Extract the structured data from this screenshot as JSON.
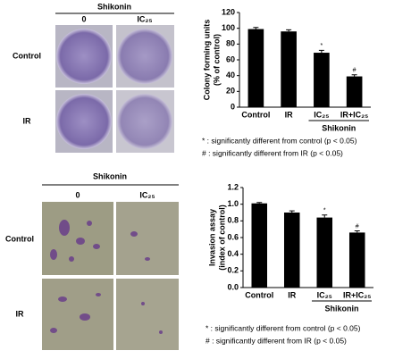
{
  "chart_data": [
    {
      "type": "bar",
      "ylabel": [
        "Colony forming units",
        "(% of control)"
      ],
      "categories": [
        "Control",
        "IR",
        "IC₂₅",
        "IR+IC₂₅"
      ],
      "values": [
        99,
        96,
        69,
        39
      ],
      "errors": [
        2,
        2,
        3,
        2
      ],
      "annotations": [
        null,
        null,
        "*",
        "#"
      ],
      "color": "#000000",
      "ylim": [
        0,
        120
      ],
      "yticks": [
        0,
        20,
        40,
        60,
        80,
        100,
        120
      ],
      "group_label": "Shikonin",
      "notes": [
        "* : significantly different from control (p < 0.05)",
        "# : significantly different from IR (p < 0.05)"
      ]
    },
    {
      "type": "bar",
      "ylabel": [
        "Invasion assay",
        "(index of control)"
      ],
      "categories": [
        "Control",
        "IR",
        "IC₂₅",
        "IR+IC₂₅"
      ],
      "values": [
        1.01,
        0.9,
        0.84,
        0.66
      ],
      "errors": [
        0.01,
        0.02,
        0.03,
        0.02
      ],
      "annotations": [
        null,
        null,
        "*",
        "#"
      ],
      "color": "#000000",
      "ylim": [
        0,
        1.2
      ],
      "yticks": [
        {
          "value": 0,
          "label": "0.0"
        },
        0.2,
        0.4,
        0.6,
        0.8,
        {
          "value": 1,
          "label": "1.0"
        },
        1.2
      ],
      "group_label": "Shikonin",
      "notes": [
        "* : significantly different from control (p < 0.05)",
        "# : significantly different from IR (p < 0.05)"
      ]
    }
  ],
  "panels": [
    {
      "header": "Shikonin",
      "columns": [
        "0",
        "IC₂₅"
      ],
      "rows": [
        "Control",
        "IR"
      ]
    },
    {
      "header": "Shikonin",
      "columns": [
        "0",
        "IC₂₅"
      ],
      "rows": [
        "Control",
        "IR"
      ]
    }
  ]
}
